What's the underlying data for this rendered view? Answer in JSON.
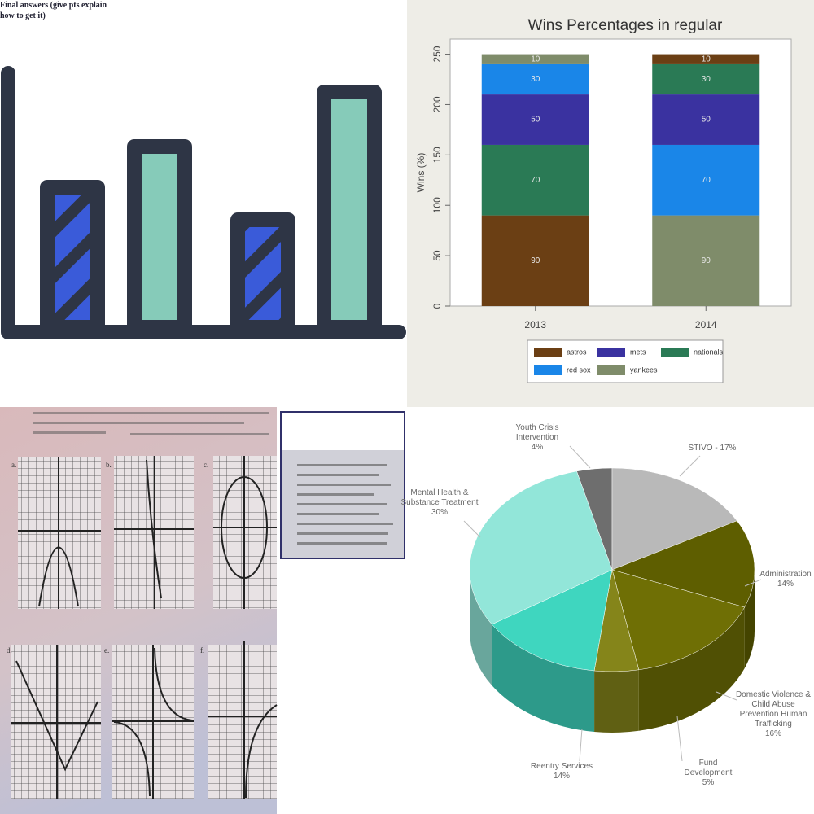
{
  "chart_data": [
    {
      "type": "bar",
      "stacked": true,
      "stack_order": "descending",
      "title": "Wins Percentages in regular",
      "ylabel": "Wins (%)",
      "categories": [
        "2013",
        "2014"
      ],
      "series": [
        {
          "name": "astros",
          "color": "#6b3f14",
          "values": [
            90,
            10
          ]
        },
        {
          "name": "mets",
          "color": "#3a32a0",
          "values": [
            50,
            50
          ]
        },
        {
          "name": "nationals",
          "color": "#2a7a55",
          "values": [
            70,
            30
          ]
        },
        {
          "name": "red sox",
          "color": "#1a86e8",
          "values": [
            30,
            70
          ]
        },
        {
          "name": "yankees",
          "color": "#7f8c6a",
          "values": [
            10,
            90
          ]
        }
      ],
      "ylim": [
        0,
        265
      ],
      "yticks": [
        0,
        50,
        100,
        150,
        200,
        250
      ],
      "legend": "bottom"
    },
    {
      "type": "pie",
      "categories": [
        "Youth Crisis Intervention",
        "STIVO -",
        "Administration",
        "Domestic Violence & Child Abuse Prevention Human Trafficking",
        "Fund Development",
        "Reentry Services",
        "Mental Health & Substance Treatment"
      ],
      "values": [
        4,
        17,
        14,
        16,
        5,
        14,
        30
      ],
      "value_labels": [
        "4%",
        "17%",
        "14%",
        "16%",
        "5%",
        "14%",
        "30%"
      ],
      "colors": [
        "#6e6e6e",
        "#b9b9b9",
        "#5e5e00",
        "#6f6f05",
        "#85851a",
        "#3fd6bf",
        "#92e6d9"
      ]
    }
  ],
  "worksheet": {
    "panel_labels": [
      "a.",
      "b.",
      "c.",
      "d.",
      "e.",
      "f."
    ],
    "answer_box_title": "Final answers (give pts explain how to get it)"
  }
}
